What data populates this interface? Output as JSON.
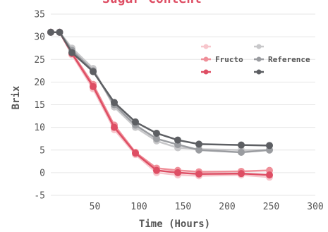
{
  "chart_data": {
    "type": "line",
    "title": "Sugar Content",
    "xlabel": "Time (Hours)",
    "ylabel": "Brix",
    "xlim": [
      0,
      300
    ],
    "ylim": [
      -5,
      35
    ],
    "xticks": [
      50,
      100,
      150,
      200,
      250,
      300
    ],
    "yticks": [
      -5,
      0,
      5,
      10,
      15,
      20,
      25,
      30,
      35
    ],
    "grid": "horizontal",
    "legend_position": "top-right",
    "legend_columns": [
      {
        "title": "Fructo",
        "series_indices": [
          0,
          1,
          2
        ]
      },
      {
        "title": "Reference",
        "series_indices": [
          3,
          4,
          5
        ]
      }
    ],
    "series": [
      {
        "color": "#f7c6cc",
        "x": [
          0,
          10,
          24,
          48,
          72,
          96,
          120,
          144,
          168,
          216,
          248
        ],
        "y": [
          31,
          31,
          26,
          18.5,
          9.5,
          4,
          0,
          -0.5,
          -0.7,
          -0.5,
          -1
        ]
      },
      {
        "color": "#ef8f99",
        "x": [
          0,
          10,
          24,
          48,
          72,
          96,
          120,
          144,
          168,
          216,
          248
        ],
        "y": [
          31,
          31,
          26.5,
          19.5,
          10.5,
          4.5,
          1,
          0.5,
          0.2,
          0.3,
          0.5
        ]
      },
      {
        "color": "#de4e64",
        "x": [
          0,
          10,
          24,
          48,
          72,
          96,
          120,
          144,
          168,
          216,
          248
        ],
        "y": [
          31,
          31,
          26.3,
          19,
          10,
          4.3,
          0.5,
          0,
          -0.3,
          -0.2,
          -0.5
        ]
      },
      {
        "color": "#c8c8ca",
        "x": [
          0,
          10,
          24,
          48,
          72,
          96,
          120,
          144,
          168,
          216,
          248
        ],
        "y": [
          31,
          31,
          27.5,
          23,
          14.5,
          10,
          7,
          5.5,
          5.2,
          5,
          5
        ]
      },
      {
        "color": "#9a9ca0",
        "x": [
          0,
          10,
          24,
          48,
          72,
          96,
          120,
          144,
          168,
          216,
          248
        ],
        "y": [
          31,
          31,
          27,
          22.5,
          15,
          10.5,
          7.5,
          6.2,
          5,
          4.5,
          5
        ]
      },
      {
        "color": "#5d5f63",
        "x": [
          0,
          10,
          24,
          48,
          72,
          96,
          120,
          144,
          168,
          216,
          248
        ],
        "y": [
          31,
          31,
          26.5,
          22.3,
          15.5,
          11.2,
          8.7,
          7.2,
          6.3,
          6.1,
          6
        ]
      }
    ]
  }
}
